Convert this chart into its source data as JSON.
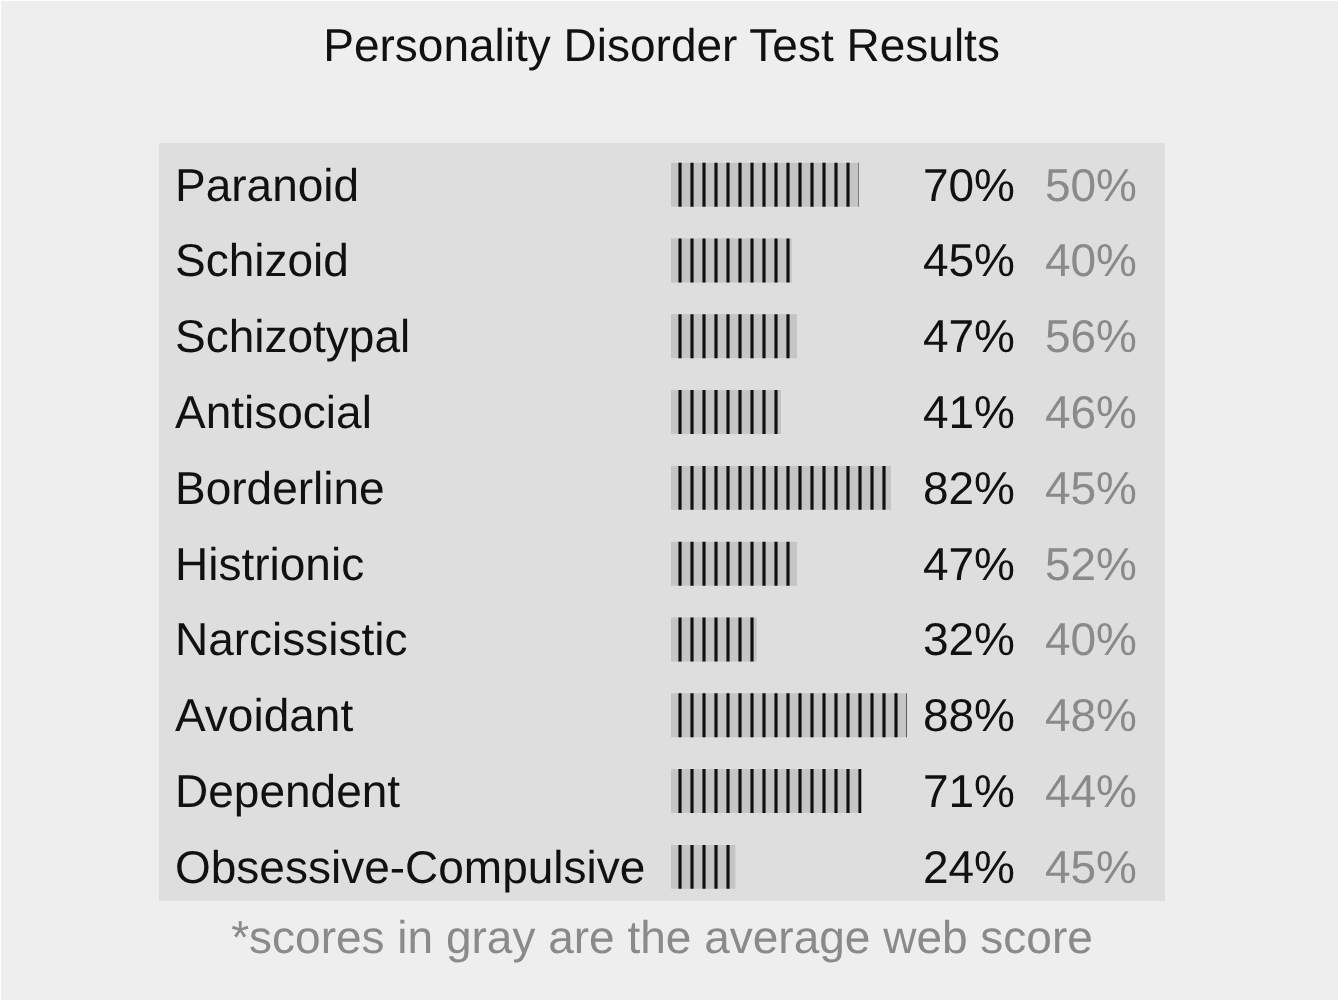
{
  "chart_data": {
    "type": "bar",
    "orientation": "horizontal",
    "title": "Personality Disorder Test Results",
    "categories": [
      "Paranoid",
      "Schizoid",
      "Schizotypal",
      "Antisocial",
      "Borderline",
      "Histrionic",
      "Narcissistic",
      "Avoidant",
      "Dependent",
      "Obsessive-Compulsive"
    ],
    "series": [
      {
        "color": "#111111",
        "values": [
          70,
          45,
          47,
          41,
          82,
          47,
          32,
          88,
          71,
          24
        ],
        "value_labels": [
          "70%",
          "45%",
          "47%",
          "41%",
          "82%",
          "47%",
          "32%",
          "88%",
          "71%",
          "24%"
        ]
      }
    ],
    "annotations": [
      "50%",
      "40%",
      "56%",
      "46%",
      "45%",
      "52%",
      "40%",
      "48%",
      "44%",
      "45%",
      "*scores in gray are the average web score"
    ]
  }
}
